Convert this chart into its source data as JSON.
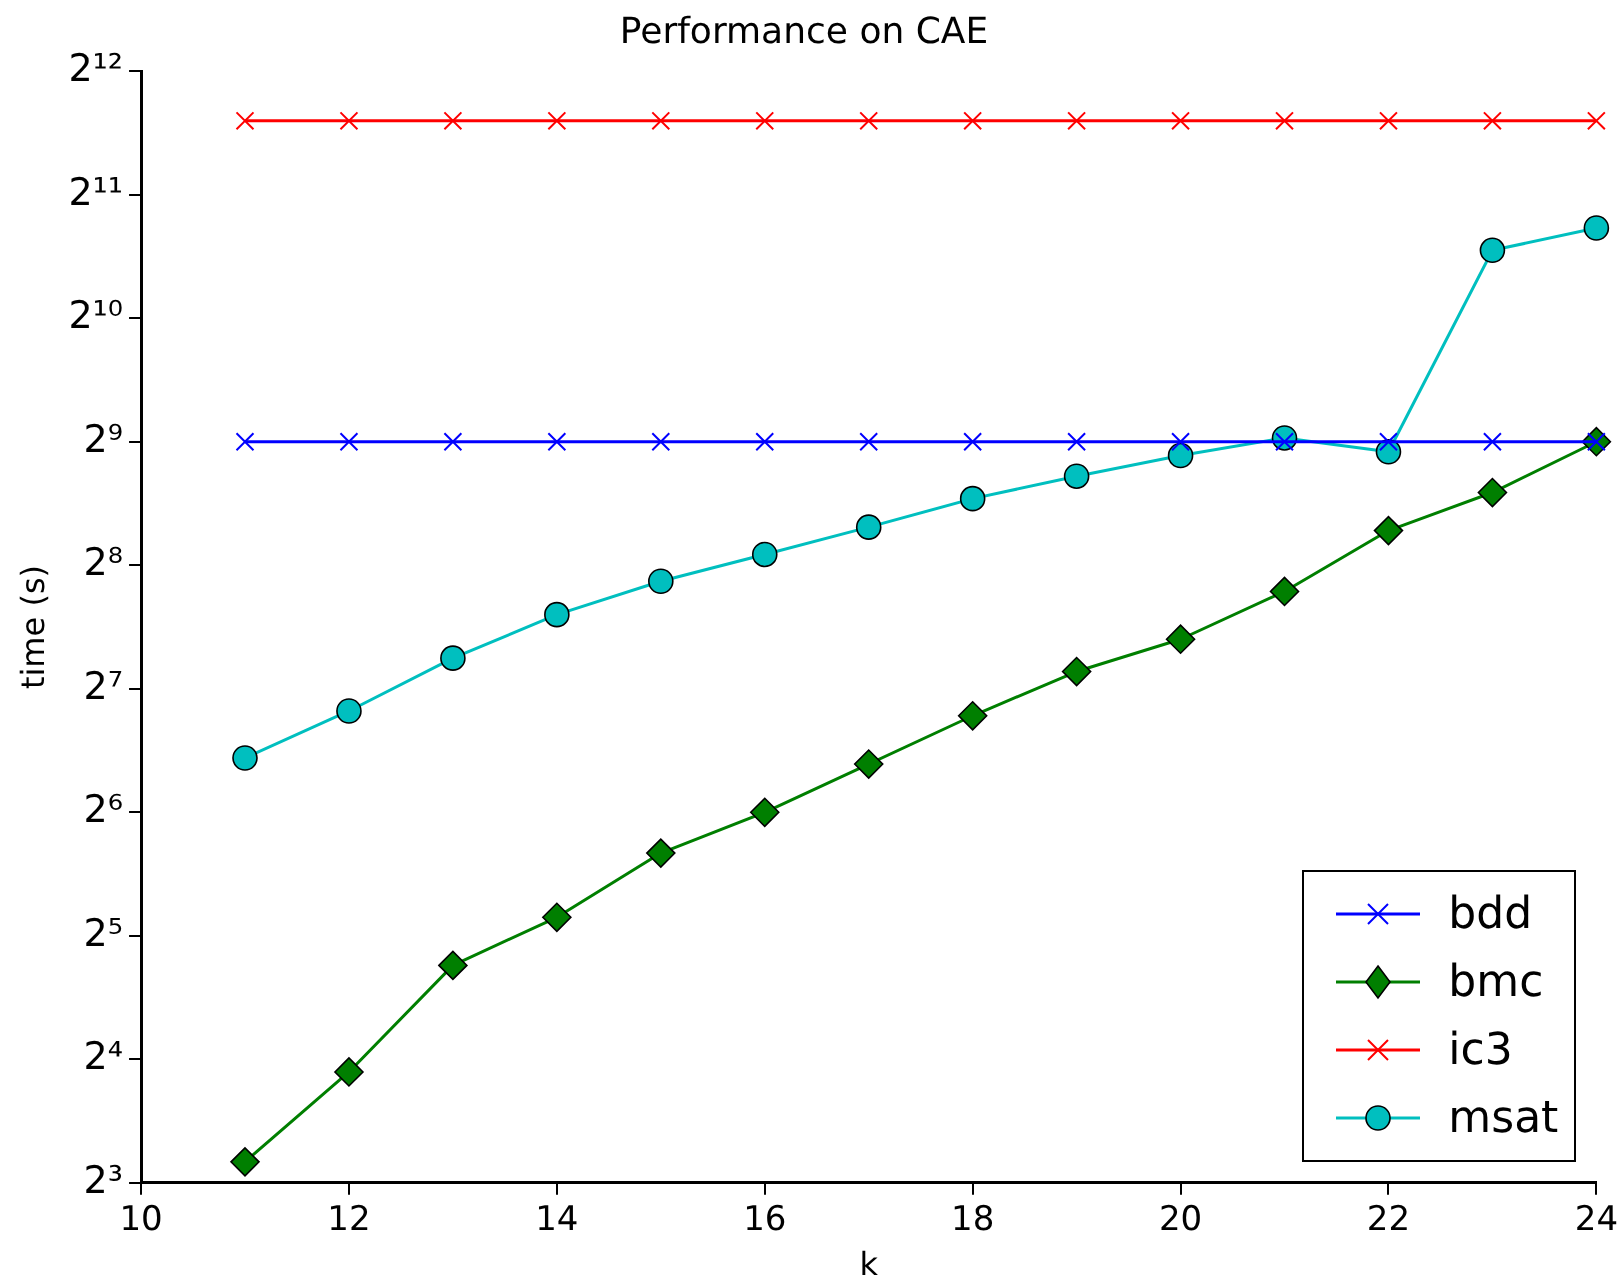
{
  "chart_data": {
    "type": "line",
    "title": "Performance on CAE",
    "xlabel": "k",
    "ylabel": "time (s)",
    "x": [
      11,
      12,
      13,
      14,
      15,
      16,
      17,
      18,
      19,
      20,
      21,
      22,
      23,
      24
    ],
    "series": [
      {
        "name": "bdd",
        "color": "#0000ff",
        "marker": "cross",
        "values": [
          512,
          512,
          512,
          512,
          512,
          512,
          512,
          512,
          512,
          512,
          512,
          512,
          512,
          512
        ]
      },
      {
        "name": "bmc",
        "color": "#007f00",
        "marker": "diamond",
        "values": [
          9,
          14.9,
          27.1,
          35.5,
          50.9,
          64,
          83.9,
          110,
          141,
          169,
          221,
          311,
          385,
          512
        ]
      },
      {
        "name": "ic3",
        "color": "#ff0000",
        "marker": "cross",
        "values": [
          3100,
          3100,
          3100,
          3100,
          3100,
          3100,
          3100,
          3100,
          3100,
          3100,
          3100,
          3100,
          3100,
          3100
        ]
      },
      {
        "name": "msat",
        "color": "#00bfbf",
        "marker": "circle",
        "values": [
          86.8,
          113,
          152,
          194,
          234,
          272,
          317,
          372,
          422,
          474,
          523,
          484,
          1499,
          1699
        ]
      }
    ],
    "xlim": [
      10,
      24
    ],
    "xticks": [
      10,
      12,
      14,
      16,
      18,
      20,
      22,
      24
    ],
    "log": "y",
    "ylim": [
      8,
      4096
    ],
    "yticks": [
      {
        "value": 8,
        "label": "2³"
      },
      {
        "value": 16,
        "label": "2⁴"
      },
      {
        "value": 32,
        "label": "2⁵"
      },
      {
        "value": 64,
        "label": "2⁶"
      },
      {
        "value": 128,
        "label": "2⁷"
      },
      {
        "value": 256,
        "label": "2⁸"
      },
      {
        "value": 512,
        "label": "2⁹"
      },
      {
        "value": 1024,
        "label": "2¹⁰"
      },
      {
        "value": 2048,
        "label": "2¹¹"
      },
      {
        "value": 4096,
        "label": "2¹²"
      }
    ],
    "grid": false,
    "legend": "bottom right",
    "line_style": "solid"
  }
}
